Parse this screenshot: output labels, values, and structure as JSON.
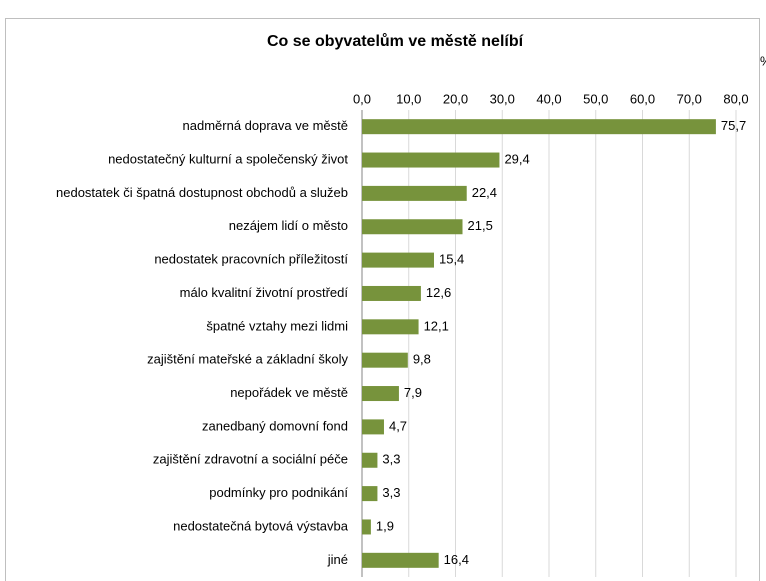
{
  "chart_data": {
    "type": "bar",
    "orientation": "horizontal",
    "title": "Co se obyvatelům ve městě nelíbí",
    "x_unit": "%",
    "categories": [
      "nadměrná doprava ve městě",
      "nedostatečný kulturní a společenský život",
      "nedostatek či špatná dostupnost obchodů a služeb",
      "nezájem lidí o město",
      "nedostatek pracovních příležitostí",
      "málo kvalitní životní prostředí",
      "špatné vztahy mezi lidmi",
      "zajištění mateřské a základní školy",
      "nepořádek ve městě",
      "zanedbaný domovní fond",
      "zajištění zdravotní a sociální péče",
      "podmínky pro podnikání",
      "nedostatečná bytová výstavba",
      "jiné"
    ],
    "values": [
      75.7,
      29.4,
      22.4,
      21.5,
      15.4,
      12.6,
      12.1,
      9.8,
      7.9,
      4.7,
      3.3,
      3.3,
      1.9,
      16.4
    ],
    "value_labels": [
      "75,7",
      "29,4",
      "22,4",
      "21,5",
      "15,4",
      "12,6",
      "12,1",
      "9,8",
      "7,9",
      "4,7",
      "3,3",
      "3,3",
      "1,9",
      "16,4"
    ],
    "color": "#77933c",
    "xlim": [
      0,
      80
    ],
    "xticks": [
      {
        "value": 0,
        "label": "0,0"
      },
      {
        "value": 10,
        "label": "10,0"
      },
      {
        "value": 20,
        "label": "20,0"
      },
      {
        "value": 30,
        "label": "30,0"
      },
      {
        "value": 40,
        "label": "40,0"
      },
      {
        "value": 50,
        "label": "50,0"
      },
      {
        "value": 60,
        "label": "60,0"
      },
      {
        "value": 70,
        "label": "70,0"
      },
      {
        "value": 80,
        "label": "80,0"
      }
    ],
    "grid": true
  }
}
